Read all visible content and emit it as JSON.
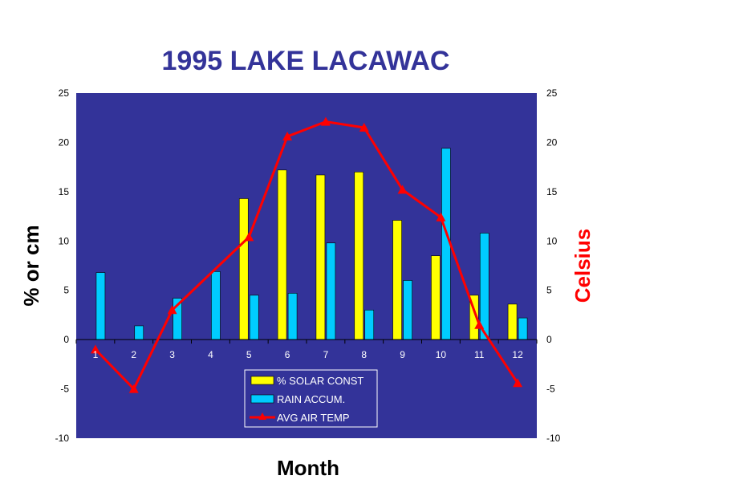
{
  "chart_data": {
    "type": "bar",
    "title": "1995 LAKE LACAWAC",
    "xlabel": "Month",
    "ylabel": "% or cm",
    "y2label": "Celsius",
    "ylim": [
      -10,
      25
    ],
    "y2lim": [
      -10,
      25
    ],
    "yticks": [
      -10,
      -5,
      0,
      5,
      10,
      15,
      20,
      25
    ],
    "categories": [
      "1",
      "2",
      "3",
      "4",
      "5",
      "6",
      "7",
      "8",
      "9",
      "10",
      "11",
      "12"
    ],
    "series": [
      {
        "name": "% SOLAR CONST",
        "type": "bar",
        "color": "#ffff00",
        "values": [
          null,
          null,
          null,
          null,
          14.3,
          17.2,
          16.7,
          17.0,
          12.1,
          8.5,
          4.5,
          3.6
        ]
      },
      {
        "name": "RAIN ACCUM.",
        "type": "bar",
        "color": "#00ccff",
        "values": [
          6.8,
          1.4,
          4.2,
          6.9,
          4.5,
          4.7,
          9.8,
          3.0,
          6.0,
          19.4,
          10.8,
          2.2
        ]
      },
      {
        "name": "AVG  AIR  TEMP",
        "type": "line",
        "color": "#ff0000",
        "values": [
          -1.0,
          -5.0,
          3.0,
          null,
          10.4,
          20.6,
          22.1,
          21.5,
          15.2,
          12.4,
          1.5,
          -4.4
        ]
      }
    ],
    "grid": false,
    "legend_position": "bottom-center",
    "colors": {
      "plot_bg": "#333399",
      "title": "#333399",
      "y2label": "#ff0000"
    }
  }
}
